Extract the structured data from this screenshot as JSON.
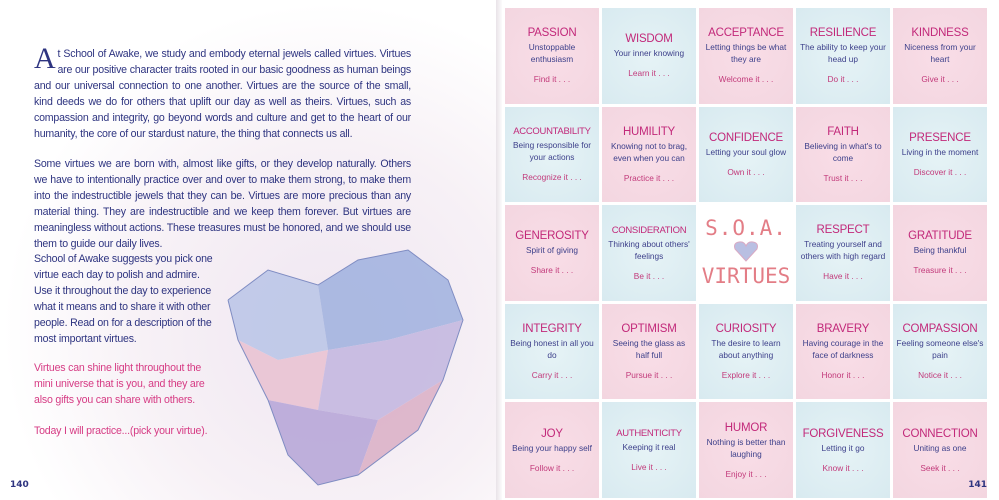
{
  "left_page": {
    "dropcap": "A",
    "p1": "t School of Awake, we study and embody eternal jewels called virtues. Virtues are our positive character traits rooted in our basic goodness as human beings and our universal connection to one another. Virtues are the source of the small, kind deeds we do for others that uplift our day as well as theirs. Virtues, such as compassion and integrity, go beyond words and culture and get to the heart of our humanity, the core of our stardust nature, the thing that connects us all.",
    "p2": "Some virtues we are born with, almost like gifts, or they develop naturally. Others we have to intentionally practice over and over to make them strong, to make them into the indestructible jewels that they can be. Virtues are more precious than any material thing. They are indestructible and we keep them forever. But virtues are meaningless without actions. These treasures must be honored, and we should use them to guide our daily lives.",
    "p3": "School of Awake suggests you pick one virtue each day to polish and admire. Use it throughout the day to experience what it means and to share it with other people. Read on for a description of the most important virtues.",
    "p4": "Virtues can shine light throughout the mini universe that is you, and they are also gifts you can share with others.",
    "p5": "Today I will practice...(pick your virtue).",
    "page_number": "140"
  },
  "right_page": {
    "center": {
      "line1": "S.O.A.",
      "line2": "VIRTUES",
      "icon": "crystal-heart-icon"
    },
    "page_number": "141",
    "colors": {
      "pink": "#f6dbe4",
      "blue": "#dcecf1",
      "title": "#c2297a",
      "desc": "#3c3f8a"
    },
    "virtues": [
      {
        "name": "PASSION",
        "desc": "Unstoppable enthusiasm",
        "action": "Find it . . .",
        "tint": "pink"
      },
      {
        "name": "WISDOM",
        "desc": "Your inner knowing",
        "action": "Learn it . . .",
        "tint": "blue"
      },
      {
        "name": "ACCEPTANCE",
        "desc": "Letting things be what they are",
        "action": "Welcome it . . .",
        "tint": "pink"
      },
      {
        "name": "RESILIENCE",
        "desc": "The ability to keep your head up",
        "action": "Do it . . .",
        "tint": "blue"
      },
      {
        "name": "KINDNESS",
        "desc": "Niceness from your heart",
        "action": "Give it . . .",
        "tint": "pink"
      },
      {
        "name": "ACCOUNTABILITY",
        "desc": "Being responsible for your actions",
        "action": "Recognize it . . .",
        "tint": "blue"
      },
      {
        "name": "HUMILITY",
        "desc": "Knowing not to brag, even when you can",
        "action": "Practice it . . .",
        "tint": "pink"
      },
      {
        "name": "CONFIDENCE",
        "desc": "Letting your soul glow",
        "action": "Own it . . .",
        "tint": "blue"
      },
      {
        "name": "FAITH",
        "desc": "Believing in what's to come",
        "action": "Trust it . . .",
        "tint": "pink"
      },
      {
        "name": "PRESENCE",
        "desc": "Living in the moment",
        "action": "Discover it . . .",
        "tint": "blue"
      },
      {
        "name": "GENEROSITY",
        "desc": "Spirit of giving",
        "action": "Share it . . .",
        "tint": "pink"
      },
      {
        "name": "CONSIDERATION",
        "desc": "Thinking about others' feelings",
        "action": "Be it . . .",
        "tint": "blue"
      },
      {
        "name": "RESPECT",
        "desc": "Treating yourself and others with high regard",
        "action": "Have it . . .",
        "tint": "blue"
      },
      {
        "name": "GRATITUDE",
        "desc": "Being thankful",
        "action": "Treasure it . . .",
        "tint": "pink"
      },
      {
        "name": "INTEGRITY",
        "desc": "Being honest in all you do",
        "action": "Carry it . . .",
        "tint": "blue"
      },
      {
        "name": "OPTIMISM",
        "desc": "Seeing the glass as half full",
        "action": "Pursue it . . .",
        "tint": "pink"
      },
      {
        "name": "CURIOSITY",
        "desc": "The desire to learn about anything",
        "action": "Explore it . . .",
        "tint": "blue"
      },
      {
        "name": "BRAVERY",
        "desc": "Having courage in the face of darkness",
        "action": "Honor it . . .",
        "tint": "pink"
      },
      {
        "name": "COMPASSION",
        "desc": "Feeling someone else's pain",
        "action": "Notice it . . .",
        "tint": "blue"
      },
      {
        "name": "JOY",
        "desc": "Being your happy self",
        "action": "Follow it . . .",
        "tint": "pink"
      },
      {
        "name": "AUTHENTICITY",
        "desc": "Keeping it real",
        "action": "Live it . . .",
        "tint": "blue"
      },
      {
        "name": "HUMOR",
        "desc": "Nothing is better than laughing",
        "action": "Enjoy it . . .",
        "tint": "pink"
      },
      {
        "name": "FORGIVENESS",
        "desc": "Letting it go",
        "action": "Know it . . .",
        "tint": "blue"
      },
      {
        "name": "CONNECTION",
        "desc": "Uniting as one",
        "action": "Seek it . . .",
        "tint": "pink"
      }
    ]
  }
}
